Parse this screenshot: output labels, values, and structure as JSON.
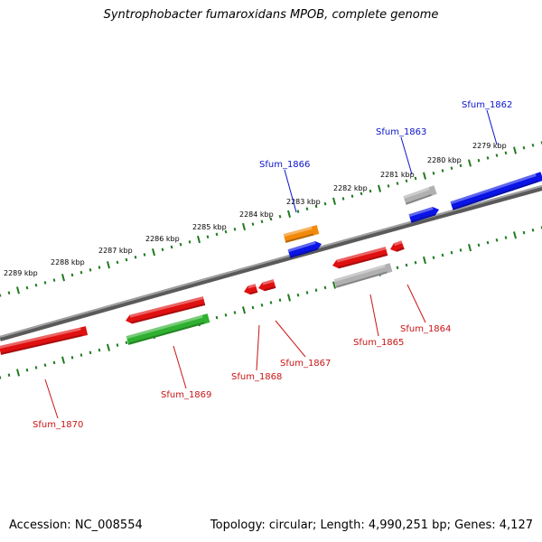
{
  "title": "Syntrophobacter fumaroxidans MPOB, complete genome",
  "footer": {
    "accession": "Accession: NC_008554",
    "stats": "Topology: circular; Length: 4,990,251 bp; Genes: 4,127"
  },
  "colors": {
    "red": "#e01010",
    "blue": "#0a14e6",
    "gray": "#b0b0b0",
    "orange": "#f28a0a",
    "green": "#30b030",
    "backbone": "#808080",
    "tick": "#207a20",
    "label_blue": "#0a14c8",
    "label_red": "#c81414"
  },
  "map": {
    "kbp_labels": [
      "2289 kbp",
      "2288 kbp",
      "2287 kbp",
      "2286 kbp",
      "2285 kbp",
      "2284 kbp",
      "2283 kbp",
      "2282 kbp",
      "2281 kbp",
      "2280 kbp",
      "2279 kbp"
    ],
    "gene_labels": [
      {
        "text": "Sfum_1862",
        "color": "blue"
      },
      {
        "text": "Sfum_1863",
        "color": "blue"
      },
      {
        "text": "Sfum_1866",
        "color": "blue"
      },
      {
        "text": "Sfum_1864",
        "color": "red"
      },
      {
        "text": "Sfum_1865",
        "color": "red"
      },
      {
        "text": "Sfum_1867",
        "color": "red"
      },
      {
        "text": "Sfum_1868",
        "color": "red"
      },
      {
        "text": "Sfum_1869",
        "color": "red"
      },
      {
        "text": "Sfum_1870",
        "color": "red"
      }
    ]
  }
}
